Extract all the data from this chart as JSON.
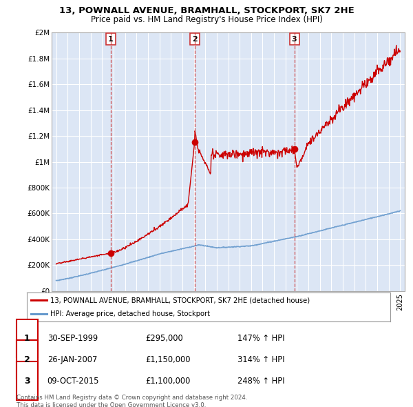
{
  "title_line1": "13, POWNALL AVENUE, BRAMHALL, STOCKPORT, SK7 2HE",
  "title_line2": "Price paid vs. HM Land Registry's House Price Index (HPI)",
  "ylabel_ticks": [
    "£0",
    "£200K",
    "£400K",
    "£600K",
    "£800K",
    "£1M",
    "£1.2M",
    "£1.4M",
    "£1.6M",
    "£1.8M",
    "£2M"
  ],
  "ytick_values": [
    0,
    200000,
    400000,
    600000,
    800000,
    1000000,
    1200000,
    1400000,
    1600000,
    1800000,
    2000000
  ],
  "ylim": [
    0,
    2000000
  ],
  "xlim_start": 1994.6,
  "xlim_end": 2025.4,
  "sale_dates": [
    1999.75,
    2007.07,
    2015.77
  ],
  "sale_prices": [
    295000,
    1150000,
    1100000
  ],
  "sale_labels": [
    "1",
    "2",
    "3"
  ],
  "line_color_red": "#cc0000",
  "line_color_blue": "#6699cc",
  "vline_color": "#cc3333",
  "grid_color": "#bbbbcc",
  "chart_bg": "#dce6f5",
  "legend_label_red": "13, POWNALL AVENUE, BRAMHALL, STOCKPORT, SK7 2HE (detached house)",
  "legend_label_blue": "HPI: Average price, detached house, Stockport",
  "footer_text": "Contains HM Land Registry data © Crown copyright and database right 2024.\nThis data is licensed under the Open Government Licence v3.0.",
  "table_rows": [
    [
      "1",
      "30-SEP-1999",
      "£295,000",
      "147% ↑ HPI"
    ],
    [
      "2",
      "26-JAN-2007",
      "£1,150,000",
      "314% ↑ HPI"
    ],
    [
      "3",
      "09-OCT-2015",
      "£1,100,000",
      "248% ↑ HPI"
    ]
  ]
}
